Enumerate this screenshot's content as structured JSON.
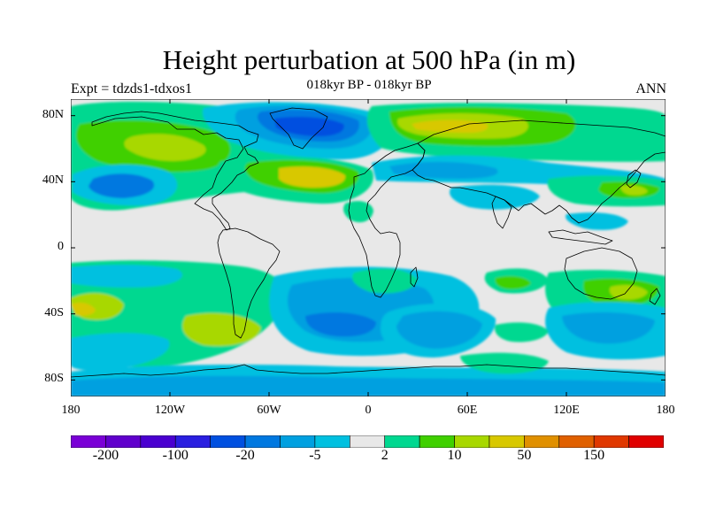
{
  "title": "Height perturbation at 500 hPa (in m)",
  "left_label": "Expt = tdzds1-tdxos1",
  "center_label": "018kyr BP - 018kyr BP",
  "right_label": "ANN",
  "lat_ticks": [
    {
      "label": "80N",
      "lat": 80
    },
    {
      "label": "40N",
      "lat": 40
    },
    {
      "label": "0",
      "lat": 0
    },
    {
      "label": "40S",
      "lat": -40
    },
    {
      "label": "80S",
      "lat": -80
    }
  ],
  "lon_ticks": [
    {
      "label": "180",
      "lon": -180
    },
    {
      "label": "120W",
      "lon": -120
    },
    {
      "label": "60W",
      "lon": -60
    },
    {
      "label": "0",
      "lon": 0
    },
    {
      "label": "60E",
      "lon": 60
    },
    {
      "label": "120E",
      "lon": 120
    },
    {
      "label": "180",
      "lon": 180
    }
  ],
  "colorbar": {
    "colors": [
      "#7a00d6",
      "#6000cc",
      "#4a00d0",
      "#2a1fe0",
      "#0050e0",
      "#0078e0",
      "#00a0e0",
      "#00c0e0",
      "#e8e8e8",
      "#00d890",
      "#40d000",
      "#a8d800",
      "#d8c800",
      "#e09000",
      "#e06000",
      "#e03800",
      "#e00000"
    ],
    "labels": [
      {
        "text": "-200",
        "boundary": 1
      },
      {
        "text": "-100",
        "boundary": 3
      },
      {
        "text": "-20",
        "boundary": 5
      },
      {
        "text": "-5",
        "boundary": 7
      },
      {
        "text": "2",
        "boundary": 9
      },
      {
        "text": "10",
        "boundary": 11
      },
      {
        "text": "50",
        "boundary": 13
      },
      {
        "text": "150",
        "boundary": 15
      }
    ]
  },
  "colors": {
    "neutral": "#e8e8e8",
    "green": "#00d890",
    "brightgreen": "#40d000",
    "yellowgreen": "#a8d800",
    "yellow": "#d8c800",
    "cyan": "#00c0e0",
    "lightblue": "#00a0e0",
    "blue": "#0078e0",
    "darkblue": "#0050e0",
    "coast": "#000000"
  }
}
